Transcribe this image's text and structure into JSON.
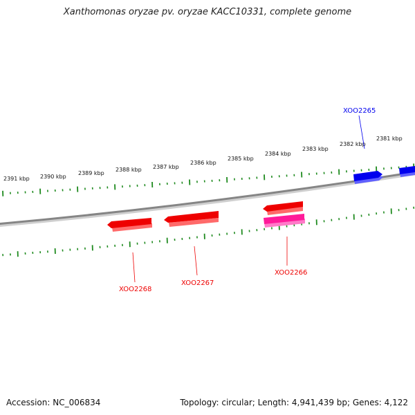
{
  "title": "Xanthomonas oryzae pv. oryzae KACC10331, complete genome",
  "footer": {
    "accession": "Accession: NC_006834",
    "summary": "Topology: circular; Length: 4,941,439 bp; Genes: 4,122"
  },
  "colors": {
    "backbone": "#8c8c8c",
    "tick": "#1e8a1e",
    "forward_gene": "#0000ee",
    "reverse_gene": "#ee0000",
    "highlight_gene": "#ff1a99"
  },
  "scale_labels": [
    "2391 kbp",
    "2390 kbp",
    "2389 kbp",
    "2388 kbp",
    "2387 kbp",
    "2386 kbp",
    "2385 kbp",
    "2384 kbp",
    "2383 kbp",
    "2382 kbp",
    "2381 kbp"
  ],
  "genes": [
    {
      "name": "XOO2265",
      "strand": "+",
      "color_key": "forward_gene"
    },
    {
      "name": "XOO2266",
      "strand": "-",
      "color_key": "reverse_gene"
    },
    {
      "name": "XOO2267",
      "strand": "-",
      "color_key": "reverse_gene"
    },
    {
      "name": "XOO2268",
      "strand": "-",
      "color_key": "reverse_gene"
    }
  ]
}
